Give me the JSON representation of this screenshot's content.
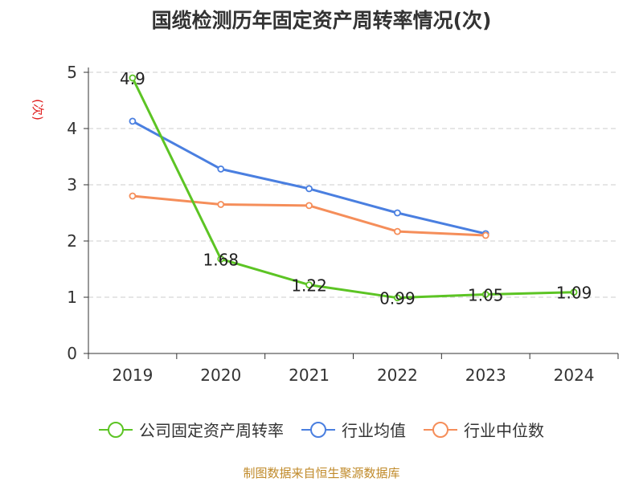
{
  "title": "国缆检测历年固定资产周转率情况(次)",
  "y_unit": "(次)",
  "source": "制图数据来自恒生聚源数据库",
  "chart_data": {
    "type": "line",
    "categories": [
      "2019",
      "2020",
      "2021",
      "2022",
      "2023",
      "2024"
    ],
    "ylim": [
      0,
      5
    ],
    "yticks": [
      0,
      1,
      2,
      3,
      4,
      5
    ],
    "grid": true,
    "legend_position": "bottom",
    "series": [
      {
        "name": "公司固定资产周转率",
        "color": "#5cc424",
        "values": [
          4.9,
          1.68,
          1.22,
          0.99,
          1.05,
          1.09
        ],
        "labels": [
          "4.9",
          "1.68",
          "1.22",
          "0.99",
          "1.05",
          "1.09"
        ]
      },
      {
        "name": "行业均值",
        "color": "#4a7fe0",
        "values": [
          4.13,
          3.28,
          2.93,
          2.5,
          2.13,
          null
        ]
      },
      {
        "name": "行业中位数",
        "color": "#f58e5a",
        "values": [
          2.8,
          2.65,
          2.63,
          2.17,
          2.1,
          null
        ]
      }
    ]
  }
}
